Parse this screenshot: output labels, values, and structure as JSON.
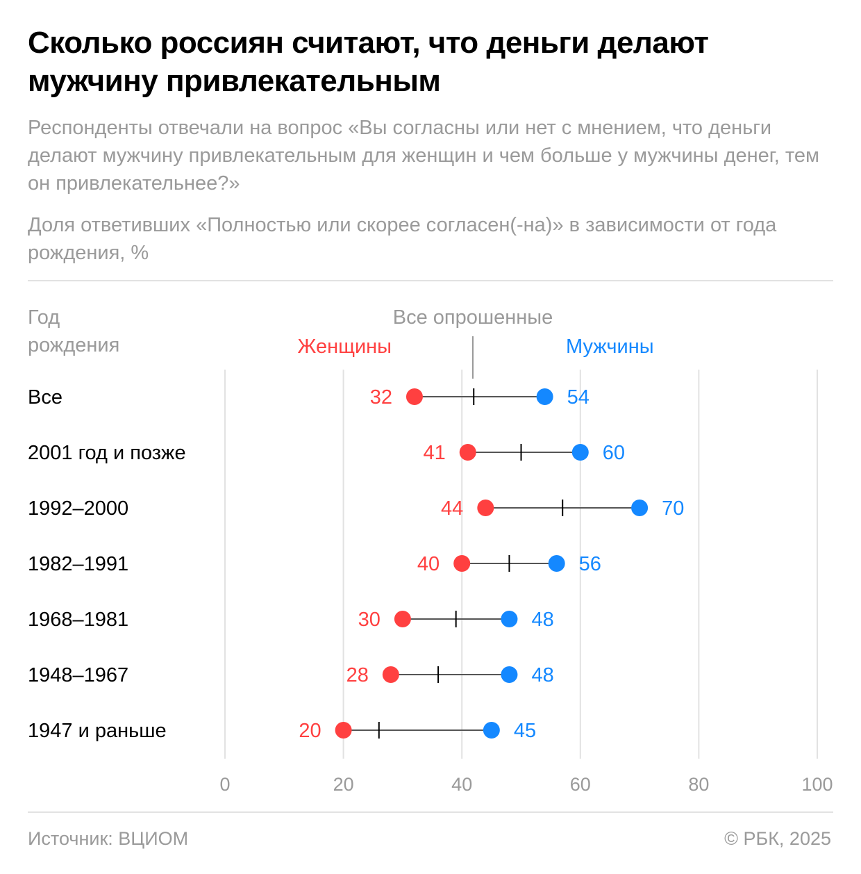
{
  "title": "Сколько россиян считают, что деньги делают мужчину привлекательным",
  "subtitle": "Респонденты отвечали на вопрос «Вы согласны или нет с мнением, что деньги делают мужчину привлекательным для женщин и чем больше у мужчины денег, тем он привлекательнее?»",
  "description": "Доля ответивших «Полностью или скорее согласен(-на)» в зависимости от года рождения, %",
  "footer": {
    "source": "Источник: ВЦИОМ",
    "copyright": "© РБК, 2025"
  },
  "colors": {
    "women": "#ff4040",
    "men": "#1488ff",
    "all": "#000000",
    "grid": "#e2e2e2"
  },
  "chart_data": {
    "type": "dumbbell",
    "row_header": [
      "Год",
      "рождения"
    ],
    "categories": [
      "Все",
      "2001 год и позже",
      "1992–2000",
      "1982–1991",
      "1968–1981",
      "1948–1967",
      "1947 и раньше"
    ],
    "series": [
      {
        "name": "Женщины",
        "values": [
          32,
          41,
          44,
          40,
          30,
          28,
          20
        ]
      },
      {
        "name": "Мужчины",
        "values": [
          54,
          60,
          70,
          56,
          48,
          48,
          45
        ]
      },
      {
        "name": "Все опрошенные",
        "values": [
          42,
          50,
          57,
          48,
          39,
          36,
          26
        ]
      }
    ],
    "xlim": [
      0,
      100
    ],
    "xticks": [
      0,
      20,
      40,
      60,
      80,
      100
    ],
    "grid": true
  }
}
